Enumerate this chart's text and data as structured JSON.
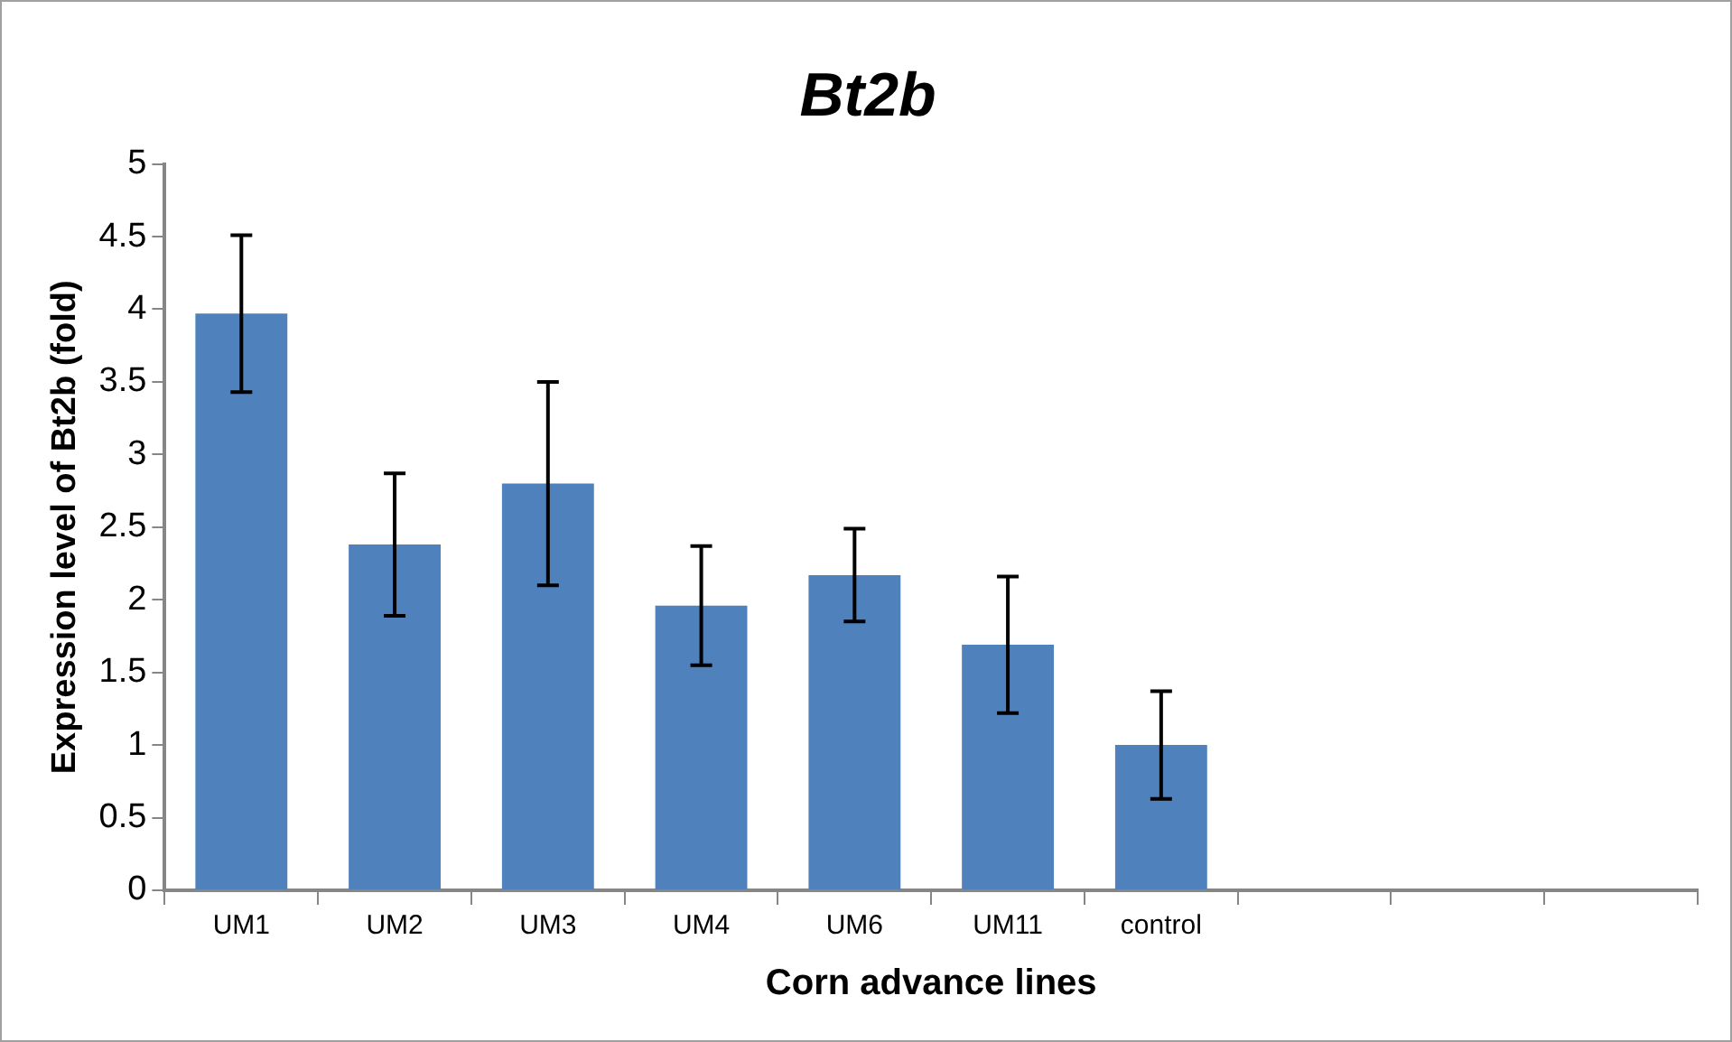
{
  "chart_data": {
    "type": "bar",
    "title": "Bt2b",
    "xlabel": "Corn advance lines",
    "ylabel": "Expression level of Bt2b (fold)",
    "categories": [
      "UM1",
      "UM2",
      "UM3",
      "UM4",
      "UM6",
      "UM11",
      "control",
      null,
      null,
      null
    ],
    "values": [
      3.97,
      2.38,
      2.8,
      1.96,
      2.17,
      1.69,
      1.0,
      null,
      null,
      null
    ],
    "errors": [
      0.54,
      0.49,
      0.7,
      0.41,
      0.32,
      0.47,
      0.37,
      null,
      null,
      null
    ],
    "color": "#4f81bd",
    "ylim": [
      0,
      5
    ],
    "yticks": [
      0,
      0.5,
      1,
      1.5,
      2,
      2.5,
      3,
      3.5,
      4,
      4.5,
      5
    ],
    "grid": false,
    "legend": false
  }
}
